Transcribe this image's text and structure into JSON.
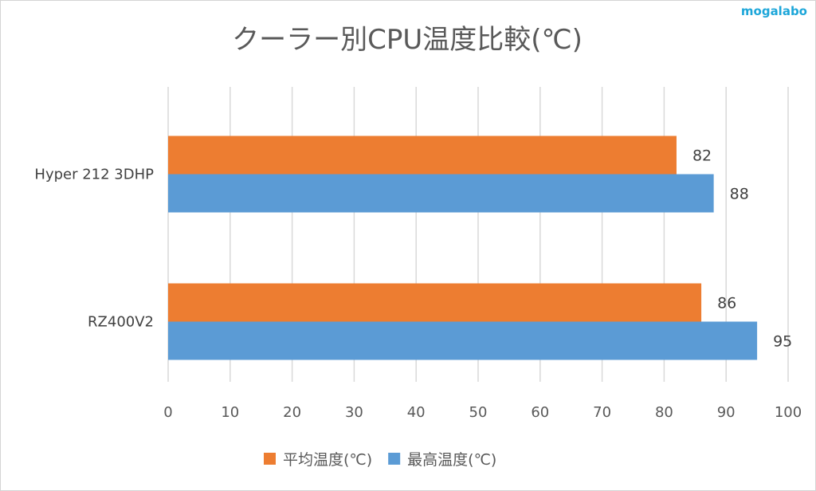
{
  "watermark": "mogalabo",
  "chart_data": {
    "type": "bar",
    "orientation": "horizontal",
    "title": "クーラー別CPU温度比較(℃)",
    "categories": [
      "Hyper 212 3DHP",
      "RZ400V2"
    ],
    "series": [
      {
        "name": "平均温度(℃)",
        "color": "#ed7d31",
        "values": [
          82,
          86
        ]
      },
      {
        "name": "最高温度(℃)",
        "color": "#5b9bd5",
        "values": [
          88,
          95
        ]
      }
    ],
    "xlim": [
      0,
      100
    ],
    "xticks": [
      "0",
      "10",
      "20",
      "30",
      "40",
      "50",
      "60",
      "70",
      "80",
      "90",
      "100"
    ],
    "grid": true,
    "legend": "bottom",
    "data_labels": true
  }
}
